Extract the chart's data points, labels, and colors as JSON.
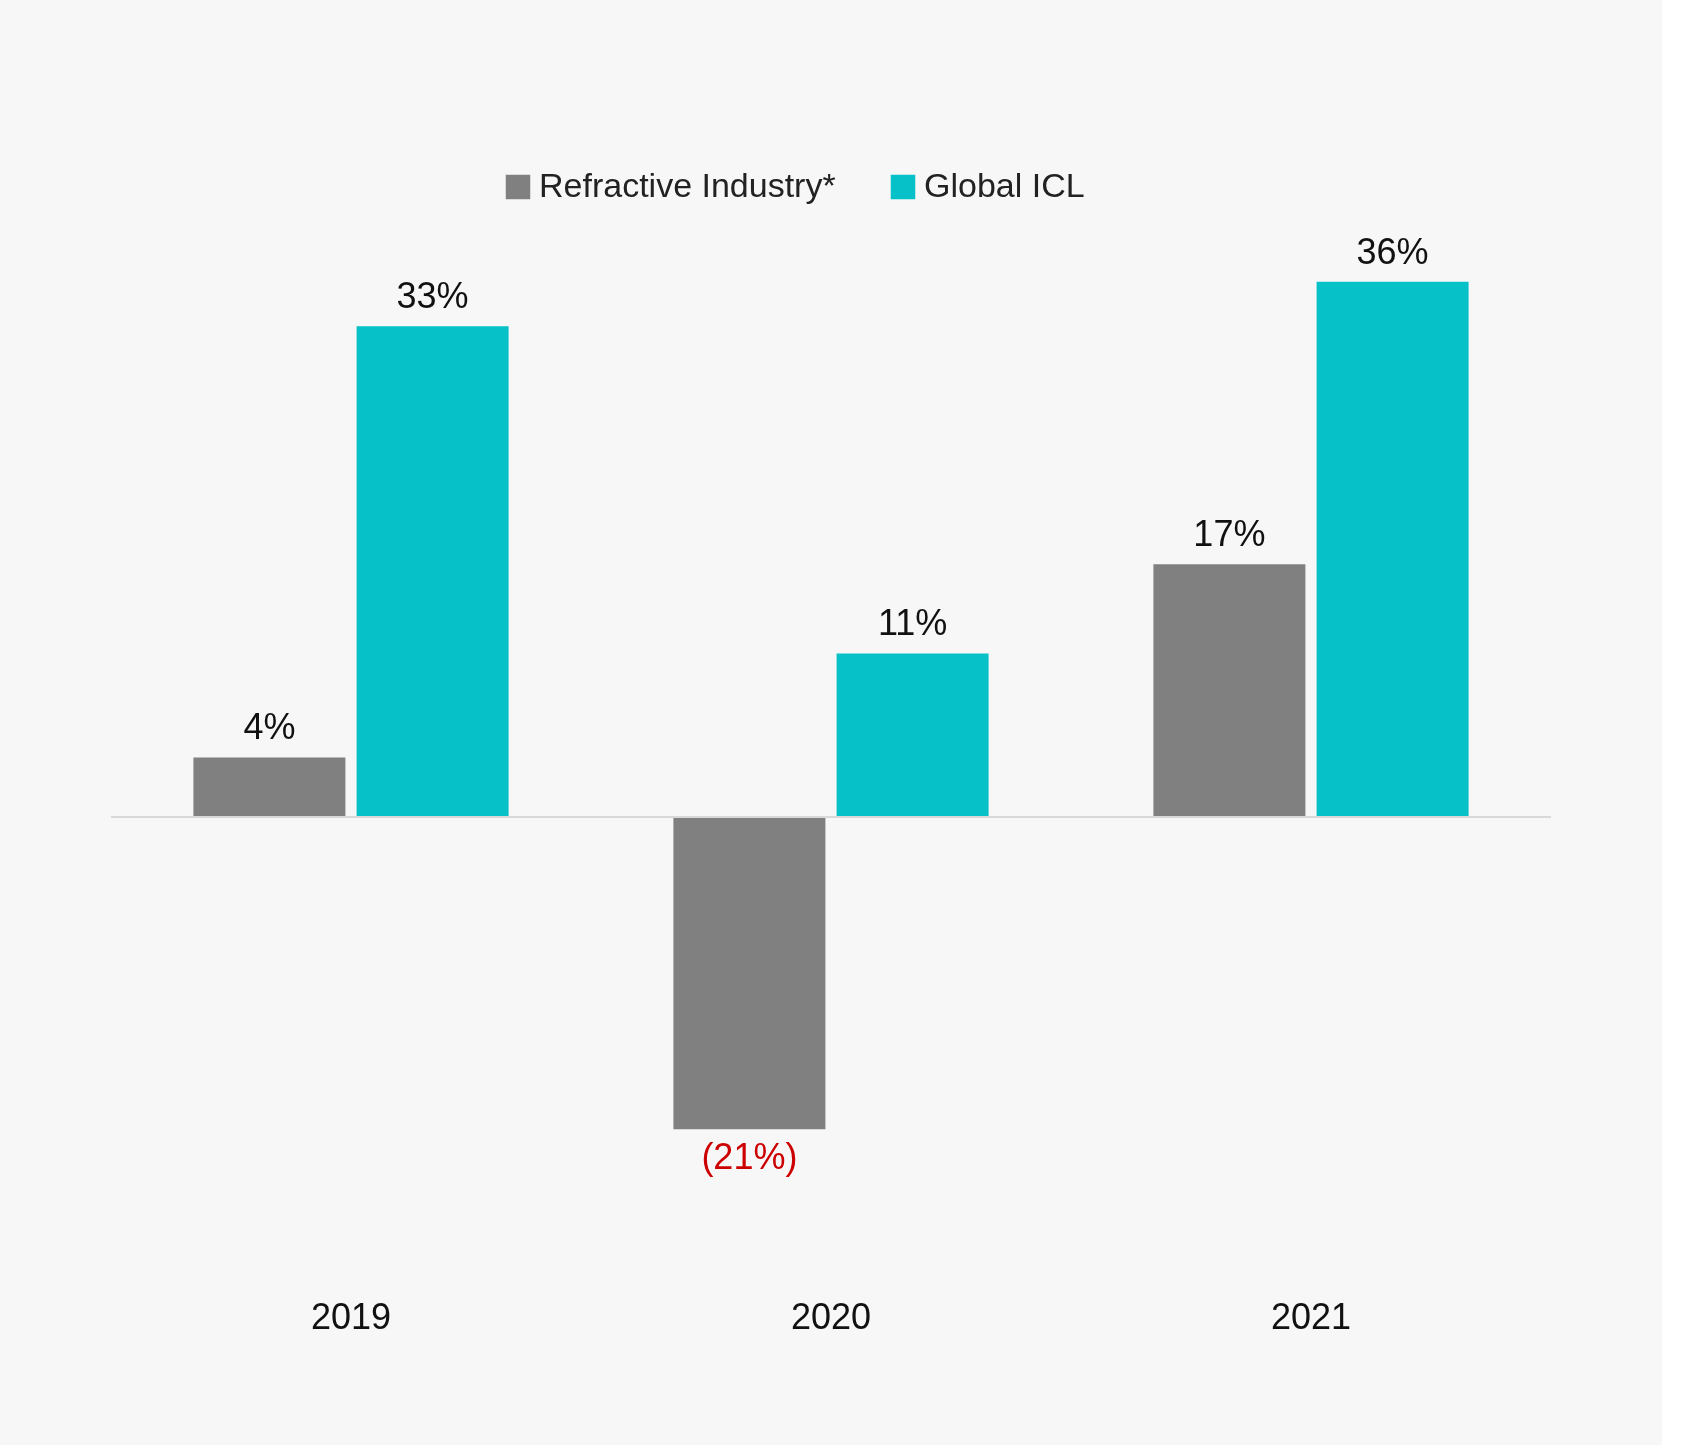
{
  "chart_data": {
    "type": "bar",
    "categories": [
      "2019",
      "2020",
      "2021"
    ],
    "series": [
      {
        "name": "Refractive Industry*",
        "color": "#808080",
        "values": [
          4,
          -21,
          17
        ],
        "value_labels": [
          "4%",
          "(21%)",
          "17%"
        ]
      },
      {
        "name": "Global ICL",
        "color": "#06c1c8",
        "values": [
          33,
          11,
          36
        ],
        "value_labels": [
          "33%",
          "11%",
          "36%"
        ]
      }
    ],
    "legend": "top",
    "grid": false
  }
}
